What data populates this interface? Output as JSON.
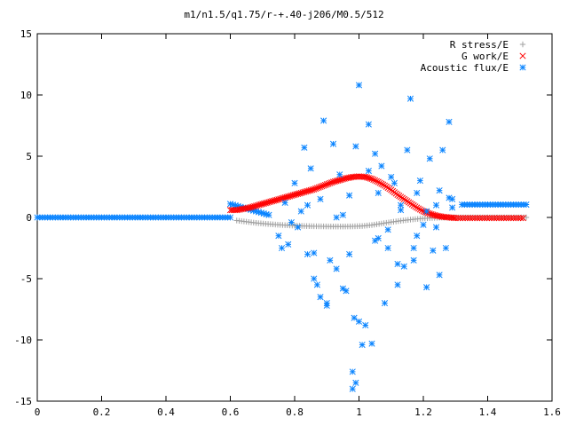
{
  "chart_data": {
    "type": "scatter",
    "title": "m1/n1.5/q1.75/r-+.40-j206/M0.5/512",
    "xlabel": "",
    "ylabel": "",
    "xlim": [
      0,
      1.6
    ],
    "ylim": [
      -15,
      15
    ],
    "xticks": [
      "0",
      "0.2",
      "0.4",
      "0.6",
      "0.8",
      "1",
      "1.2",
      "1.4",
      "1.6"
    ],
    "yticks": [
      "15",
      "10",
      "5",
      "0",
      "-5",
      "-10",
      "-15"
    ],
    "grid": false,
    "legend_position": "top-right",
    "series": [
      {
        "name": "R stress/E",
        "marker": "plus",
        "color": "#a0a0a0",
        "x": [
          0.62,
          0.65,
          0.68,
          0.71,
          0.74,
          0.77,
          0.8,
          0.83,
          0.86,
          0.89,
          0.92,
          0.95,
          0.98,
          1.01,
          1.04,
          1.07,
          1.1,
          1.13,
          1.16,
          1.19,
          1.22,
          1.25,
          1.28,
          1.31,
          1.34,
          1.37,
          1.4,
          1.43,
          1.46,
          1.49,
          1.52
        ],
        "y": [
          -0.25,
          -0.35,
          -0.45,
          -0.52,
          -0.58,
          -0.63,
          -0.67,
          -0.7,
          -0.72,
          -0.73,
          -0.74,
          -0.74,
          -0.73,
          -0.7,
          -0.62,
          -0.5,
          -0.38,
          -0.27,
          -0.18,
          -0.1,
          -0.05,
          -0.02,
          0.0,
          0.0,
          0.0,
          0.0,
          0.0,
          0.0,
          0.0,
          0.0,
          0.0
        ]
      },
      {
        "name": "G work/E",
        "marker": "cross",
        "color": "#ff0000",
        "x": [
          0.6,
          0.62,
          0.64,
          0.66,
          0.68,
          0.7,
          0.72,
          0.74,
          0.76,
          0.78,
          0.8,
          0.82,
          0.84,
          0.86,
          0.88,
          0.9,
          0.92,
          0.94,
          0.96,
          0.98,
          1.0,
          1.02,
          1.04,
          1.06,
          1.08,
          1.1,
          1.12,
          1.14,
          1.16,
          1.18,
          1.2,
          1.22,
          1.24,
          1.26,
          1.28,
          1.3,
          1.33,
          1.36,
          1.39,
          1.42,
          1.45,
          1.48,
          1.51
        ],
        "y": [
          0.6,
          0.6,
          0.7,
          0.8,
          0.95,
          1.1,
          1.25,
          1.4,
          1.55,
          1.7,
          1.85,
          2.0,
          2.15,
          2.3,
          2.5,
          2.7,
          2.9,
          3.05,
          3.2,
          3.3,
          3.35,
          3.3,
          3.15,
          2.9,
          2.6,
          2.25,
          1.85,
          1.5,
          1.15,
          0.8,
          0.5,
          0.3,
          0.15,
          0.05,
          0.0,
          -0.05,
          -0.05,
          -0.05,
          -0.05,
          -0.05,
          -0.05,
          -0.05,
          -0.05
        ]
      },
      {
        "name": "Acoustic flux/E",
        "marker": "star",
        "color": "#0a84ff",
        "x": [
          0.75,
          0.77,
          0.78,
          0.8,
          0.81,
          0.82,
          0.83,
          0.84,
          0.85,
          0.86,
          0.87,
          0.88,
          0.89,
          0.9,
          0.91,
          0.92,
          0.93,
          0.94,
          0.95,
          0.96,
          0.97,
          0.98,
          0.99,
          1.0,
          1.01,
          1.02,
          1.03,
          1.04,
          1.05,
          1.06,
          1.07,
          1.08,
          1.09,
          1.1,
          1.11,
          1.12,
          1.13,
          1.14,
          1.15,
          1.16,
          1.17,
          1.18,
          1.19,
          1.2,
          1.21,
          1.22,
          1.23,
          1.24,
          1.25,
          1.26,
          1.27,
          1.28,
          1.29,
          0.76,
          0.79,
          0.84,
          0.88,
          0.93,
          0.97,
          1.0,
          1.03,
          1.06,
          1.09,
          1.13,
          1.17,
          1.21,
          1.25,
          1.28,
          0.98,
          0.99,
          0.985,
          0.86,
          0.9,
          0.95,
          1.05,
          1.12,
          1.18,
          1.24,
          1.29
        ],
        "y": [
          -1.5,
          1.2,
          -2.2,
          2.8,
          -0.8,
          0.5,
          5.7,
          -3.0,
          4.0,
          -5.0,
          -5.5,
          1.5,
          7.9,
          -7.2,
          -3.5,
          6.0,
          -4.2,
          3.5,
          0.2,
          -6.0,
          1.8,
          -12.6,
          5.8,
          10.8,
          -10.4,
          -8.8,
          7.6,
          -10.3,
          5.2,
          2.0,
          4.2,
          -7.0,
          -2.5,
          3.3,
          2.8,
          -5.5,
          0.6,
          -4.0,
          5.5,
          9.7,
          -3.5,
          2.0,
          3.0,
          -0.6,
          -5.7,
          4.8,
          -2.7,
          1.0,
          2.2,
          5.5,
          -2.5,
          7.8,
          1.5,
          -2.5,
          -0.4,
          1.0,
          -6.5,
          0.0,
          -3.0,
          -8.5,
          3.8,
          -1.7,
          -1.0,
          1.0,
          -2.5,
          0.5,
          -4.7,
          1.6,
          -14.0,
          -13.5,
          -8.2,
          -2.9,
          -7.0,
          -5.8,
          -1.9,
          -3.8,
          -1.5,
          -0.8,
          0.8
        ]
      }
    ],
    "acoustic_flat_segments": [
      {
        "x_from": 0.0,
        "x_to": 0.6,
        "y": 0.0
      },
      {
        "x_from": 0.6,
        "x_to": 0.72,
        "y_from": 1.1,
        "y_to": 0.2
      },
      {
        "x_from": 1.32,
        "x_to": 1.52,
        "y": 1.05
      }
    ]
  }
}
